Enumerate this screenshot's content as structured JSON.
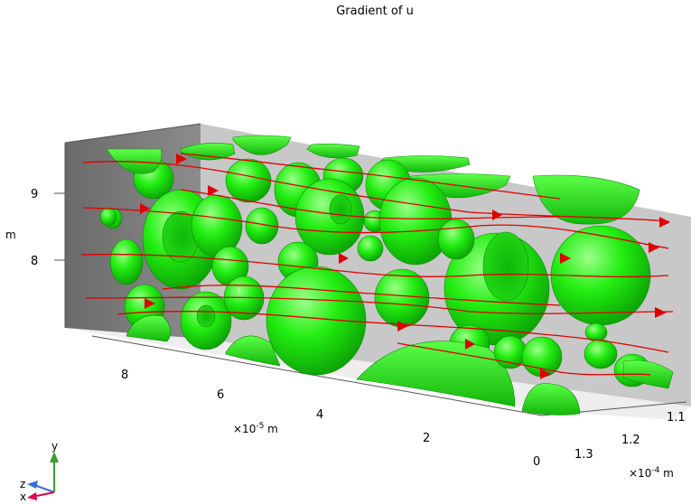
{
  "title": "Gradient of u",
  "axes": {
    "y_axis": {
      "unit": "m",
      "ticks": [
        "9",
        "8"
      ]
    },
    "x_axis": {
      "unit": "×10⁻⁵ m",
      "unit_base": "×10",
      "unit_exp": "-5",
      "unit_suffix": " m",
      "ticks": [
        "8",
        "6",
        "4",
        "2",
        "0"
      ]
    },
    "z_axis": {
      "unit": "×10⁻⁴ m",
      "unit_base": "×10",
      "unit_exp": "-4",
      "unit_suffix": " m",
      "ticks": [
        "1.1",
        "1.2",
        "1.3"
      ]
    }
  },
  "triad": {
    "y": "y",
    "z": "z",
    "x": "x"
  },
  "colors": {
    "surface": "#22ee11",
    "streamline": "#e00000",
    "back_wall": "#c8c8c8",
    "side_wall": "#7a7a7a",
    "axis_line": "#555555"
  }
}
